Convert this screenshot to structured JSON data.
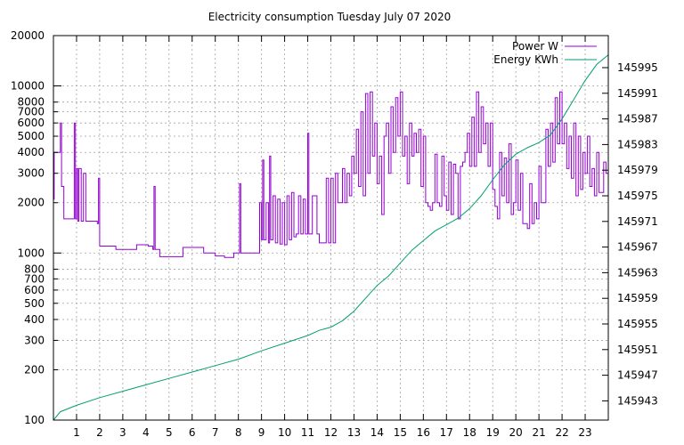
{
  "chart_data": {
    "type": "line",
    "title": "Electricity consumption Tuesday July 07 2020",
    "x": {
      "range": [
        0,
        24
      ],
      "ticks": [
        1,
        2,
        3,
        4,
        5,
        6,
        7,
        8,
        9,
        10,
        11,
        12,
        13,
        14,
        15,
        16,
        17,
        18,
        19,
        20,
        21,
        22,
        23
      ],
      "tick_labels": [
        "1",
        "2",
        "3",
        "4",
        "5",
        "6",
        "7",
        "8",
        "9",
        "10",
        "11",
        "12",
        "13",
        "14",
        "15",
        "16",
        "17",
        "18",
        "19",
        "20",
        "21",
        "22",
        "23"
      ]
    },
    "y_left": {
      "scale": "log",
      "range": [
        100,
        20000
      ],
      "ticks": [
        100,
        200,
        300,
        400,
        500,
        600,
        700,
        800,
        1000,
        2000,
        3000,
        4000,
        5000,
        6000,
        7000,
        8000,
        10000,
        20000
      ],
      "tick_labels": [
        "100",
        "200",
        "300",
        "400",
        "500",
        "600",
        "700",
        "800",
        "1000",
        "2000",
        "3000",
        "4000",
        "5000",
        "6000",
        "7000",
        "8000",
        "10000",
        "20000"
      ]
    },
    "y_right": {
      "scale": "linear",
      "range": [
        145940,
        146000
      ],
      "ticks": [
        145943,
        145947,
        145951,
        145955,
        145959,
        145963,
        145967,
        145971,
        145975,
        145979,
        145983,
        145987,
        145991,
        145995
      ],
      "tick_labels": [
        "145943",
        "145947",
        "145951",
        "145955",
        "145959",
        "145963",
        "145967",
        "145971",
        "145975",
        "145979",
        "145983",
        "145987",
        "145991",
        "145995"
      ]
    },
    "grid": true,
    "legend_position": "top-right",
    "series": [
      {
        "name": "Power W",
        "axis": "left",
        "color": "#9400d3",
        "points": [
          [
            0.0,
            2100
          ],
          [
            0.03,
            4000
          ],
          [
            0.25,
            4000
          ],
          [
            0.3,
            6000
          ],
          [
            0.35,
            2500
          ],
          [
            0.45,
            1600
          ],
          [
            0.8,
            1600
          ],
          [
            0.9,
            6000
          ],
          [
            0.95,
            1600
          ],
          [
            1.0,
            3200
          ],
          [
            1.05,
            1550
          ],
          [
            1.1,
            3200
          ],
          [
            1.2,
            1550
          ],
          [
            1.3,
            3000
          ],
          [
            1.4,
            1550
          ],
          [
            1.9,
            1500
          ],
          [
            1.95,
            2800
          ],
          [
            2.0,
            1100
          ],
          [
            2.1,
            1100
          ],
          [
            2.7,
            1050
          ],
          [
            3.5,
            1050
          ],
          [
            3.6,
            1120
          ],
          [
            4.1,
            1100
          ],
          [
            4.3,
            1050
          ],
          [
            4.35,
            2500
          ],
          [
            4.4,
            1050
          ],
          [
            4.6,
            950
          ],
          [
            5.5,
            950
          ],
          [
            5.6,
            1080
          ],
          [
            6.0,
            1080
          ],
          [
            6.5,
            1000
          ],
          [
            7.0,
            960
          ],
          [
            7.4,
            940
          ],
          [
            7.8,
            1000
          ],
          [
            8.0,
            1000
          ],
          [
            8.05,
            2600
          ],
          [
            8.1,
            1000
          ],
          [
            8.9,
            1000
          ],
          [
            8.92,
            2000
          ],
          [
            9.0,
            1200
          ],
          [
            9.05,
            3600
          ],
          [
            9.1,
            1200
          ],
          [
            9.2,
            2000
          ],
          [
            9.3,
            1150
          ],
          [
            9.35,
            3800
          ],
          [
            9.4,
            1200
          ],
          [
            9.5,
            2200
          ],
          [
            9.6,
            1150
          ],
          [
            9.7,
            2100
          ],
          [
            9.8,
            1130
          ],
          [
            9.9,
            2000
          ],
          [
            10.0,
            1120
          ],
          [
            10.1,
            2200
          ],
          [
            10.2,
            1200
          ],
          [
            10.3,
            2300
          ],
          [
            10.4,
            1250
          ],
          [
            10.5,
            1300
          ],
          [
            10.6,
            2200
          ],
          [
            10.7,
            1300
          ],
          [
            10.8,
            2100
          ],
          [
            10.9,
            1300
          ],
          [
            11.0,
            5200
          ],
          [
            11.05,
            1300
          ],
          [
            11.2,
            2200
          ],
          [
            11.4,
            1300
          ],
          [
            11.5,
            1150
          ],
          [
            11.7,
            1150
          ],
          [
            11.8,
            2800
          ],
          [
            11.9,
            1150
          ],
          [
            12.0,
            2800
          ],
          [
            12.1,
            1150
          ],
          [
            12.2,
            3000
          ],
          [
            12.3,
            2000
          ],
          [
            12.5,
            3200
          ],
          [
            12.6,
            2000
          ],
          [
            12.7,
            3000
          ],
          [
            12.8,
            2200
          ],
          [
            12.9,
            3800
          ],
          [
            13.0,
            3000
          ],
          [
            13.1,
            5500
          ],
          [
            13.2,
            2500
          ],
          [
            13.3,
            7000
          ],
          [
            13.4,
            2200
          ],
          [
            13.5,
            9000
          ],
          [
            13.6,
            3000
          ],
          [
            13.7,
            9200
          ],
          [
            13.8,
            3800
          ],
          [
            13.9,
            6000
          ],
          [
            14.0,
            2600
          ],
          [
            14.1,
            3800
          ],
          [
            14.2,
            1700
          ],
          [
            14.3,
            5000
          ],
          [
            14.4,
            6000
          ],
          [
            14.5,
            3000
          ],
          [
            14.6,
            7500
          ],
          [
            14.7,
            4000
          ],
          [
            14.8,
            8500
          ],
          [
            14.9,
            5000
          ],
          [
            15.0,
            9200
          ],
          [
            15.1,
            3800
          ],
          [
            15.2,
            5000
          ],
          [
            15.3,
            2600
          ],
          [
            15.4,
            6000
          ],
          [
            15.5,
            3800
          ],
          [
            15.6,
            5200
          ],
          [
            15.7,
            4000
          ],
          [
            15.8,
            5500
          ],
          [
            15.9,
            2500
          ],
          [
            16.0,
            5000
          ],
          [
            16.1,
            2000
          ],
          [
            16.2,
            1900
          ],
          [
            16.3,
            1800
          ],
          [
            16.4,
            2000
          ],
          [
            16.5,
            3900
          ],
          [
            16.6,
            2000
          ],
          [
            16.7,
            1900
          ],
          [
            16.8,
            3800
          ],
          [
            16.9,
            2200
          ],
          [
            17.0,
            1800
          ],
          [
            17.1,
            3500
          ],
          [
            17.2,
            1700
          ],
          [
            17.3,
            3400
          ],
          [
            17.4,
            3000
          ],
          [
            17.5,
            1600
          ],
          [
            17.6,
            3300
          ],
          [
            17.7,
            3500
          ],
          [
            17.8,
            4000
          ],
          [
            17.9,
            5200
          ],
          [
            18.0,
            3300
          ],
          [
            18.1,
            6500
          ],
          [
            18.2,
            3300
          ],
          [
            18.3,
            9200
          ],
          [
            18.4,
            4000
          ],
          [
            18.5,
            7500
          ],
          [
            18.6,
            4500
          ],
          [
            18.7,
            6000
          ],
          [
            18.8,
            3300
          ],
          [
            18.9,
            6000
          ],
          [
            19.0,
            2400
          ],
          [
            19.1,
            1900
          ],
          [
            19.2,
            1600
          ],
          [
            19.3,
            4000
          ],
          [
            19.4,
            2200
          ],
          [
            19.5,
            3700
          ],
          [
            19.6,
            2000
          ],
          [
            19.7,
            4500
          ],
          [
            19.8,
            1700
          ],
          [
            19.9,
            2000
          ],
          [
            20.0,
            3600
          ],
          [
            20.1,
            1800
          ],
          [
            20.2,
            3000
          ],
          [
            20.3,
            1500
          ],
          [
            20.5,
            1400
          ],
          [
            20.6,
            2600
          ],
          [
            20.7,
            1500
          ],
          [
            20.8,
            2000
          ],
          [
            20.9,
            1600
          ],
          [
            21.0,
            3300
          ],
          [
            21.1,
            2000
          ],
          [
            21.3,
            5500
          ],
          [
            21.4,
            3300
          ],
          [
            21.5,
            6000
          ],
          [
            21.6,
            3500
          ],
          [
            21.7,
            8500
          ],
          [
            21.8,
            4500
          ],
          [
            21.9,
            9200
          ],
          [
            22.0,
            4500
          ],
          [
            22.1,
            6000
          ],
          [
            22.2,
            3200
          ],
          [
            22.3,
            5000
          ],
          [
            22.4,
            2800
          ],
          [
            22.5,
            6000
          ],
          [
            22.6,
            2200
          ],
          [
            22.7,
            5000
          ],
          [
            22.8,
            2400
          ],
          [
            22.9,
            4000
          ],
          [
            23.0,
            3000
          ],
          [
            23.1,
            5000
          ],
          [
            23.2,
            2500
          ],
          [
            23.3,
            3200
          ],
          [
            23.4,
            2200
          ],
          [
            23.5,
            4000
          ],
          [
            23.6,
            2300
          ],
          [
            23.7,
            2300
          ],
          [
            23.8,
            3500
          ],
          [
            23.9,
            3000
          ],
          [
            24.0,
            3000
          ]
        ]
      },
      {
        "name": "Energy KWh",
        "axis": "right",
        "color": "#009e73",
        "points": [
          [
            0.0,
            145940.0
          ],
          [
            0.3,
            145941.3
          ],
          [
            1.0,
            145942.3
          ],
          [
            2.0,
            145943.5
          ],
          [
            3.0,
            145944.5
          ],
          [
            4.0,
            145945.5
          ],
          [
            5.0,
            145946.5
          ],
          [
            6.0,
            145947.5
          ],
          [
            7.0,
            145948.5
          ],
          [
            8.0,
            145949.5
          ],
          [
            9.0,
            145950.8
          ],
          [
            10.0,
            145952.0
          ],
          [
            11.0,
            145953.2
          ],
          [
            11.5,
            145954.0
          ],
          [
            12.0,
            145954.5
          ],
          [
            12.5,
            145955.5
          ],
          [
            13.0,
            145957.0
          ],
          [
            13.5,
            145959.0
          ],
          [
            14.0,
            145961.0
          ],
          [
            14.5,
            145962.5
          ],
          [
            15.0,
            145964.5
          ],
          [
            15.5,
            145966.5
          ],
          [
            16.0,
            145968.0
          ],
          [
            16.5,
            145969.5
          ],
          [
            17.0,
            145970.5
          ],
          [
            17.5,
            145971.5
          ],
          [
            18.0,
            145973.0
          ],
          [
            18.5,
            145975.0
          ],
          [
            19.0,
            145977.5
          ],
          [
            19.5,
            145979.8
          ],
          [
            20.0,
            145981.5
          ],
          [
            20.5,
            145982.5
          ],
          [
            21.0,
            145983.3
          ],
          [
            21.5,
            145984.5
          ],
          [
            22.0,
            145987.0
          ],
          [
            22.5,
            145990.0
          ],
          [
            23.0,
            145993.0
          ],
          [
            23.5,
            145995.5
          ],
          [
            24.0,
            145997.0
          ]
        ]
      }
    ]
  }
}
